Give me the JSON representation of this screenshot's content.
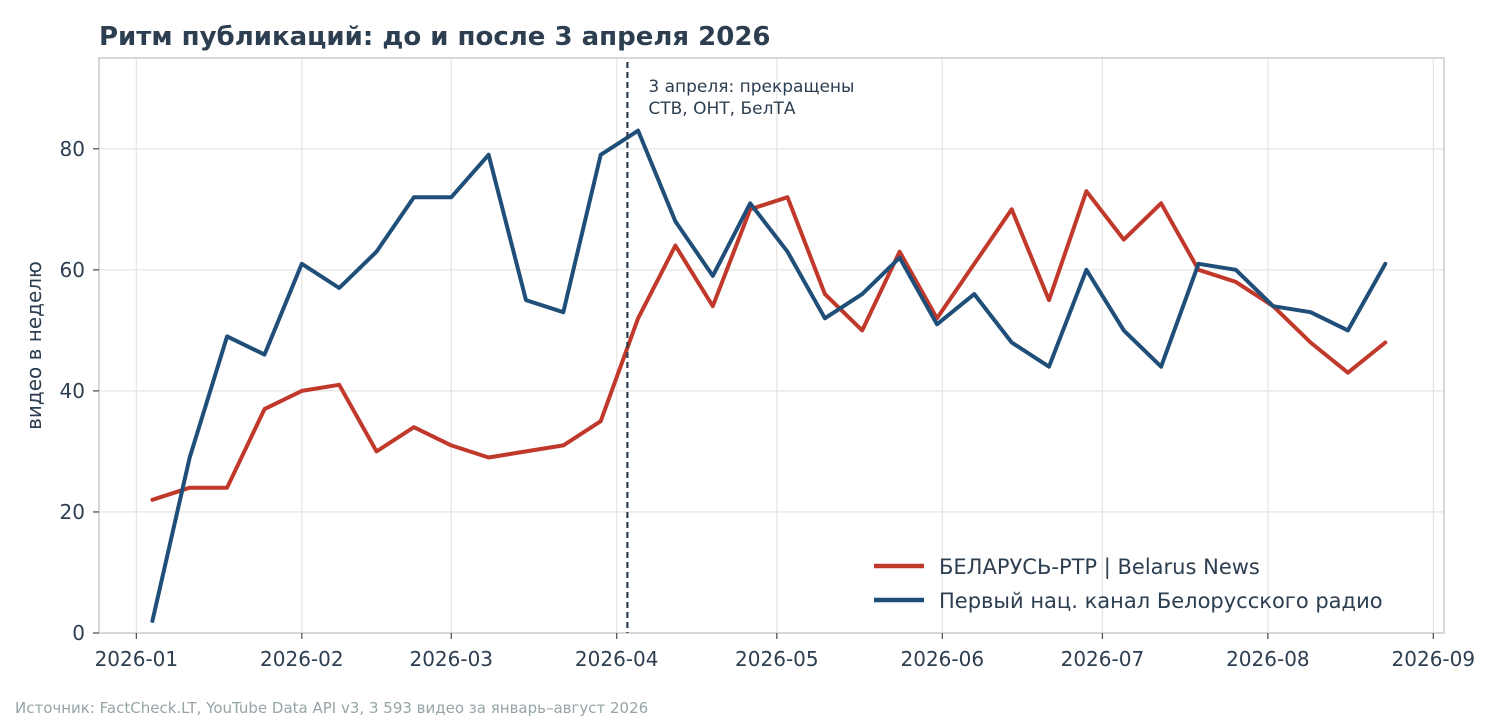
{
  "chart_data": {
    "type": "line",
    "title": "Ритм публикаций: до и после 3 апреля 2026",
    "ylabel": "видео в неделю",
    "xlabel": "",
    "xlim": [
      "2025-12-25",
      "2026-09-03"
    ],
    "ylim": [
      0,
      95
    ],
    "x_ticks": [
      "2026-01",
      "2026-02",
      "2026-03",
      "2026-04",
      "2026-05",
      "2026-06",
      "2026-07",
      "2026-08",
      "2026-09"
    ],
    "y_ticks": [
      0,
      20,
      40,
      60,
      80
    ],
    "grid": true,
    "legend_position": "bottom-right",
    "x": [
      "2026-01-04",
      "2026-01-11",
      "2026-01-18",
      "2026-01-25",
      "2026-02-01",
      "2026-02-08",
      "2026-02-15",
      "2026-02-22",
      "2026-03-01",
      "2026-03-08",
      "2026-03-15",
      "2026-03-22",
      "2026-03-29",
      "2026-04-05",
      "2026-04-12",
      "2026-04-19",
      "2026-04-26",
      "2026-05-03",
      "2026-05-10",
      "2026-05-17",
      "2026-05-24",
      "2026-05-31",
      "2026-06-07",
      "2026-06-14",
      "2026-06-21",
      "2026-06-28",
      "2026-07-05",
      "2026-07-12",
      "2026-07-19",
      "2026-07-26",
      "2026-08-02",
      "2026-08-09",
      "2026-08-16",
      "2026-08-23"
    ],
    "series": [
      {
        "name": "БЕЛАРУСЬ-РТР | Belarus News",
        "color": "#c0392b",
        "values": [
          22,
          24,
          24,
          37,
          40,
          41,
          30,
          34,
          31,
          29,
          30,
          31,
          35,
          52,
          64,
          54,
          70,
          72,
          56,
          50,
          63,
          52,
          61,
          70,
          55,
          73,
          65,
          71,
          60,
          58,
          54,
          48,
          43,
          48
        ]
      },
      {
        "name": "Первый нац. канал Белорусского радио",
        "color": "#1f4e79",
        "values": [
          2,
          29,
          49,
          46,
          61,
          57,
          63,
          72,
          72,
          79,
          55,
          53,
          79,
          83,
          68,
          59,
          71,
          63,
          52,
          56,
          62,
          51,
          56,
          48,
          44,
          60,
          50,
          44,
          61,
          60,
          54,
          53,
          50,
          61
        ]
      }
    ],
    "vline": {
      "x": "2026-04-03",
      "label_line1": "3 апреля: прекращены",
      "label_line2": "СТВ, ОНТ, БелТА"
    },
    "source": "Источник: FactCheck.LT, YouTube Data API v3, 3 593 видео за январь–август 2026"
  }
}
